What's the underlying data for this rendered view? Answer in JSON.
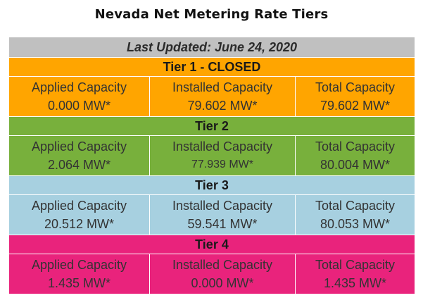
{
  "title": "Nevada Net Metering Rate Tiers",
  "last_updated": "Last Updated: June 24, 2020",
  "colors": {
    "header_bg": "#c0c0c0",
    "tier1": "#ffa500",
    "tier2": "#78b03c",
    "tier3": "#a7d0e0",
    "tier4": "#e9237c"
  },
  "tiers": [
    {
      "name": "Tier 1 - CLOSED",
      "applied_label": "Applied Capacity",
      "applied_value": "0.000 MW*",
      "installed_label": "Installed Capacity",
      "installed_value": "79.602 MW*",
      "total_label": "Total Capacity",
      "total_value": "79.602 MW*"
    },
    {
      "name": "Tier 2",
      "applied_label": "Applied Capacity",
      "applied_value": "2.064 MW*",
      "installed_label": "Installed Capacity",
      "installed_value": "77.939 MW*",
      "total_label": "Total Capacity",
      "total_value": "80.004 MW*"
    },
    {
      "name": "Tier 3",
      "applied_label": "Applied Capacity",
      "applied_value": "20.512 MW*",
      "installed_label": "Installed Capacity",
      "installed_value": "59.541 MW*",
      "total_label": "Total Capacity",
      "total_value": "80.053 MW*"
    },
    {
      "name": "Tier 4",
      "applied_label": "Applied Capacity",
      "applied_value": "1.435 MW*",
      "installed_label": "Installed Capacity",
      "installed_value": "0.000 MW*",
      "total_label": "Total Capacity",
      "total_value": "1.435 MW*"
    }
  ]
}
